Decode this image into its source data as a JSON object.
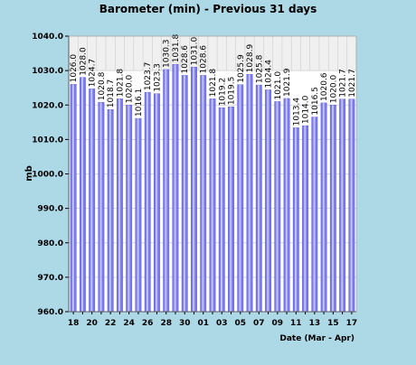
{
  "chart_data": {
    "type": "bar",
    "title": "Barometer (min) - Previous 31 days",
    "xlabel": "Date (Mar - Apr)",
    "ylabel": "mb",
    "ylim": [
      960,
      1040
    ],
    "yticks": [
      "960.0",
      "970.0",
      "980.0",
      "990.0",
      "1000.0",
      "1010.0",
      "1020.0",
      "1030.0",
      "1040.0"
    ],
    "categories": [
      "18",
      "19",
      "20",
      "21",
      "22",
      "23",
      "24",
      "25",
      "26",
      "27",
      "28",
      "29",
      "30",
      "31",
      "01",
      "02",
      "03",
      "04",
      "05",
      "06",
      "07",
      "08",
      "09",
      "10",
      "11",
      "12",
      "13",
      "14",
      "15",
      "16",
      "17"
    ],
    "x_tick_labels": [
      "18",
      "20",
      "22",
      "24",
      "26",
      "28",
      "30",
      "01",
      "03",
      "05",
      "07",
      "09",
      "11",
      "13",
      "15",
      "17"
    ],
    "values": [
      1026.0,
      1028.0,
      1024.7,
      1020.8,
      1018.7,
      1021.8,
      1020.0,
      1016.1,
      1023.7,
      1023.3,
      1030.3,
      1031.8,
      1028.6,
      1031.0,
      1028.6,
      1021.8,
      1019.2,
      1019.5,
      1025.9,
      1028.9,
      1025.8,
      1024.4,
      1021.0,
      1021.9,
      1013.4,
      1014.0,
      1016.5,
      1020.6,
      1020.0,
      1021.7,
      1021.7
    ],
    "data_labels": [
      "1026.0",
      "1028.0",
      "1024.7",
      "1020.8",
      "1018.7",
      "1021.8",
      "1020.0",
      "1016.1",
      "1023.7",
      "1023.3",
      "1030.3",
      "1031.8",
      "1028.6",
      "1031.0",
      "1028.6",
      "1021.8",
      "1019.2",
      "1019.5",
      "1025.9",
      "1028.9",
      "1025.8",
      "1024.4",
      "1021.0",
      "1021.9",
      "1013.4",
      "1014.0",
      "1016.5",
      "1020.6",
      "1020.0",
      "1021.7",
      "1021.7"
    ],
    "grid": true,
    "colors": {
      "background": "#add8e6",
      "plot_background": "#ffffff",
      "band_background": "#f0f0f0",
      "bar_fill": "#7b7bee",
      "bar_highlight": "#c4c4ff",
      "grid": "#cccccc",
      "text": "#000000"
    }
  }
}
